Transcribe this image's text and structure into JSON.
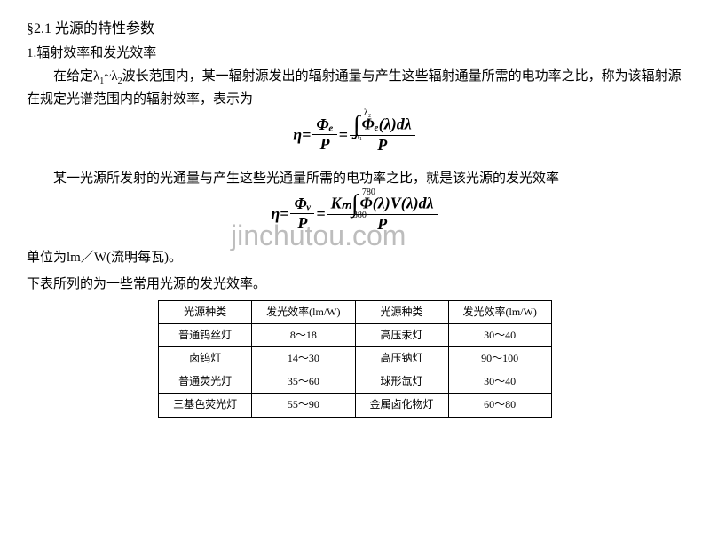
{
  "section_title": "§2.1  光源的特性参数",
  "subsection": "1.辐射效率和发光效率",
  "para1": "在给定λ₁~λ₂波长范围内，某一辐射源发出的辐射通量与产生这些辐射通量所需的电功率之比，称为该辐射源在规定光谱范围内的辐射效率，表示为",
  "formula1": {
    "eq": "η=",
    "frac1_num": "Φₑ",
    "frac1_den": "P",
    "mid": "=",
    "int_upper": "λ₂",
    "int_lower": "λ₁",
    "integrand": "Φₑ(λ)dλ",
    "frac2_den": "P"
  },
  "para2": "某一光源所发射的光通量与产生这些光通量所需的电功率之比，就是该光源的发光效率",
  "watermark": "jinchutou.com",
  "formula2": {
    "eq": "η=",
    "frac1_num": "Φᵥ",
    "frac1_den": "P",
    "mid": "=",
    "k": "Kₘ",
    "int_upper": "780",
    "int_lower": "380",
    "integrand": "Φ(λ)V(λ)dλ",
    "frac2_den": "P"
  },
  "para3": "单位为lm／W(流明每瓦)。",
  "para4": "下表所列的为一些常用光源的发光效率。",
  "table": {
    "headers": [
      "光源种类",
      "发光效率(lm/W)",
      "光源种类",
      "发光效率(lm/W)"
    ],
    "rows": [
      [
        "普通钨丝灯",
        "8～18",
        "高压汞灯",
        "30～40"
      ],
      [
        "卤钨灯",
        "14～30",
        "高压钠灯",
        "90～100"
      ],
      [
        "普通荧光灯",
        "35～60",
        "球形氙灯",
        "30～40"
      ],
      [
        "三基色荧光灯",
        "55～90",
        "金属卤化物灯",
        "60～80"
      ]
    ]
  }
}
